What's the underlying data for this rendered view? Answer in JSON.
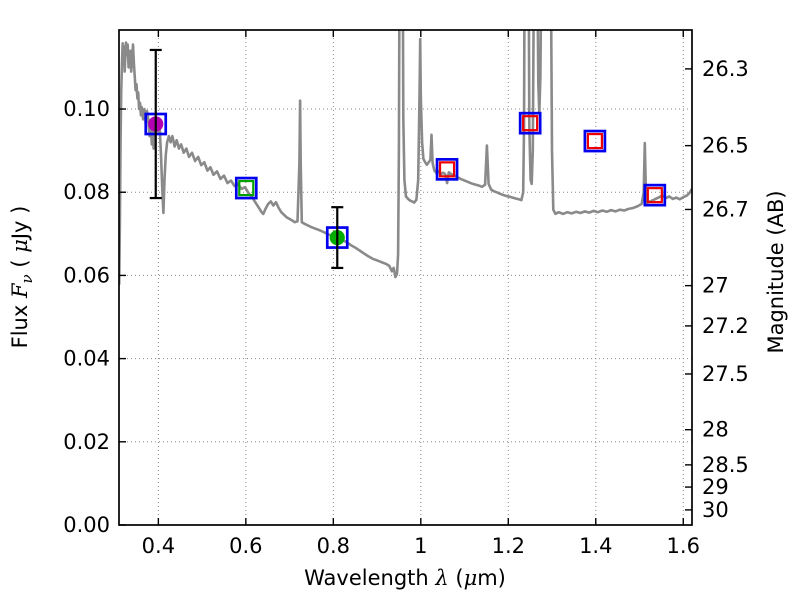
{
  "chart_data": {
    "type": "line+scatter",
    "title": "",
    "xlabel": "Wavelength λ (μm)",
    "ylabel_left": "Flux Fν ( μJy )",
    "ylabel_right": "Magnitude (AB)",
    "xlabel_parts": [
      {
        "t": "Wavelength  "
      },
      {
        "t": "λ",
        "i": true
      },
      {
        "t": " (",
        "i": false
      },
      {
        "t": "μ",
        "i": true
      },
      {
        "t": "m)"
      }
    ],
    "ylabel_left_parts": [
      {
        "t": "Flux  "
      },
      {
        "t": "F",
        "i": true
      },
      {
        "t": "ν",
        "i": true,
        "sub": true
      },
      {
        "t": "  ( "
      },
      {
        "t": "μ",
        "i": true
      },
      {
        "t": "Jy )"
      }
    ],
    "ylabel_right_parts": [
      {
        "t": "Magnitude (AB)"
      }
    ],
    "xlim": [
      0.31,
      1.62
    ],
    "ylim_flux": [
      0,
      0.119
    ],
    "grid": true,
    "ab_zero_point": 23.9,
    "x_ticks": [
      {
        "value": 0.4,
        "label": "0.4"
      },
      {
        "value": 0.6,
        "label": "0.6"
      },
      {
        "value": 0.8,
        "label": "0.8"
      },
      {
        "value": 1.0,
        "label": "1"
      },
      {
        "value": 1.2,
        "label": "1.2"
      },
      {
        "value": 1.4,
        "label": "1.4"
      },
      {
        "value": 1.6,
        "label": "1.6"
      }
    ],
    "y_ticks_flux": [
      {
        "value": 0.0,
        "label": "0.00"
      },
      {
        "value": 0.02,
        "label": "0.02"
      },
      {
        "value": 0.04,
        "label": "0.04"
      },
      {
        "value": 0.06,
        "label": "0.06"
      },
      {
        "value": 0.08,
        "label": "0.08"
      },
      {
        "value": 0.1,
        "label": "0.10"
      }
    ],
    "y_ticks_mag": [
      {
        "value": 26.3,
        "label": "26.3"
      },
      {
        "value": 26.5,
        "label": "26.5"
      },
      {
        "value": 26.7,
        "label": "26.7"
      },
      {
        "value": 27.0,
        "label": "27"
      },
      {
        "value": 27.2,
        "label": "27.2"
      },
      {
        "value": 27.5,
        "label": "27.5"
      },
      {
        "value": 28.0,
        "label": "28"
      },
      {
        "value": 28.5,
        "label": "28.5"
      },
      {
        "value": 29.0,
        "label": "29"
      },
      {
        "value": 30.0,
        "label": "30"
      }
    ],
    "colors": {
      "spectrum": "#8a8a8a",
      "outer_square": "#0000ee",
      "magenta_circle": "#b300b3",
      "green_circle": "#00ad00",
      "green_square": "#00a000",
      "red_square": "#ee0000",
      "errorbar": "#000000",
      "grid": "#888888",
      "frame": "#000000"
    },
    "photometry": [
      {
        "wavelength_um": 0.394,
        "flux_ujy": 0.0964,
        "err_flux": 0.0178,
        "outer_marker": "open-square",
        "inner_marker": "filled-circle",
        "inner_color_key": "magenta_circle"
      },
      {
        "wavelength_um": 0.601,
        "flux_ujy": 0.081,
        "err_flux": null,
        "outer_marker": "open-square",
        "inner_marker": "open-square",
        "inner_color_key": "green_square"
      },
      {
        "wavelength_um": 0.809,
        "flux_ujy": 0.0691,
        "err_flux": 0.0073,
        "outer_marker": "open-square",
        "inner_marker": "filled-circle",
        "inner_color_key": "green_circle"
      },
      {
        "wavelength_um": 1.06,
        "flux_ujy": 0.0855,
        "err_flux": null,
        "outer_marker": "open-square",
        "inner_marker": "open-square",
        "inner_color_key": "red_square"
      },
      {
        "wavelength_um": 1.25,
        "flux_ujy": 0.0966,
        "err_flux": null,
        "outer_marker": "open-square",
        "inner_marker": "open-square",
        "inner_color_key": "red_square"
      },
      {
        "wavelength_um": 1.398,
        "flux_ujy": 0.0923,
        "err_flux": null,
        "outer_marker": "open-square",
        "inner_marker": "open-square",
        "inner_color_key": "red_square"
      },
      {
        "wavelength_um": 1.535,
        "flux_ujy": 0.0793,
        "err_flux": null,
        "outer_marker": "open-square",
        "inner_marker": "open-square",
        "inner_color_key": "red_square"
      }
    ],
    "spectrum": {
      "name": "model-spectrum",
      "points": [
        [
          0.3105,
          0.058
        ],
        [
          0.312,
          0.073
        ],
        [
          0.3135,
          0.091
        ],
        [
          0.315,
          0.104
        ],
        [
          0.317,
          0.112
        ],
        [
          0.3185,
          0.1158
        ],
        [
          0.32,
          0.1125
        ],
        [
          0.3215,
          0.115
        ],
        [
          0.323,
          0.109
        ],
        [
          0.3245,
          0.1125
        ],
        [
          0.326,
          0.116
        ],
        [
          0.328,
          0.113
        ],
        [
          0.33,
          0.1155
        ],
        [
          0.332,
          0.11
        ],
        [
          0.334,
          0.1115
        ],
        [
          0.336,
          0.114
        ],
        [
          0.338,
          0.109
        ],
        [
          0.34,
          0.112
        ],
        [
          0.342,
          0.1155
        ],
        [
          0.344,
          0.111
        ],
        [
          0.346,
          0.108
        ],
        [
          0.348,
          0.1045
        ],
        [
          0.35,
          0.106
        ],
        [
          0.352,
          0.1025
        ],
        [
          0.354,
          0.104
        ],
        [
          0.356,
          0.1
        ],
        [
          0.358,
          0.1015
        ],
        [
          0.36,
          0.0985
        ],
        [
          0.362,
          0.1005
        ],
        [
          0.365,
          0.0975
        ],
        [
          0.368,
          0.1
        ],
        [
          0.371,
          0.0965
        ],
        [
          0.374,
          0.0995
        ],
        [
          0.377,
          0.0975
        ],
        [
          0.38,
          0.0935
        ],
        [
          0.3825,
          0.0965
        ],
        [
          0.385,
          0.0915
        ],
        [
          0.3875,
          0.0945
        ],
        [
          0.389,
          0.0905
        ],
        [
          0.391,
          0.0975
        ],
        [
          0.394,
          0.0955
        ],
        [
          0.397,
          0.0965
        ],
        [
          0.4,
          0.0945
        ],
        [
          0.403,
          0.0955
        ],
        [
          0.406,
          0.089
        ],
        [
          0.409,
          0.0805
        ],
        [
          0.4115,
          0.075
        ],
        [
          0.414,
          0.083
        ],
        [
          0.417,
          0.089
        ],
        [
          0.42,
          0.092
        ],
        [
          0.424,
          0.0935
        ],
        [
          0.428,
          0.092
        ],
        [
          0.432,
          0.0935
        ],
        [
          0.437,
          0.091
        ],
        [
          0.442,
          0.0925
        ],
        [
          0.447,
          0.0905
        ],
        [
          0.452,
          0.0915
        ],
        [
          0.458,
          0.0895
        ],
        [
          0.464,
          0.0905
        ],
        [
          0.47,
          0.0885
        ],
        [
          0.477,
          0.0895
        ],
        [
          0.484,
          0.0875
        ],
        [
          0.491,
          0.0885
        ],
        [
          0.498,
          0.0865
        ],
        [
          0.505,
          0.0872
        ],
        [
          0.512,
          0.0852
        ],
        [
          0.519,
          0.086
        ],
        [
          0.526,
          0.0842
        ],
        [
          0.534,
          0.085
        ],
        [
          0.542,
          0.0832
        ],
        [
          0.55,
          0.084
        ],
        [
          0.558,
          0.0822
        ],
        [
          0.566,
          0.0828
        ],
        [
          0.574,
          0.0815
        ],
        [
          0.582,
          0.082
        ],
        [
          0.59,
          0.0808
        ],
        [
          0.598,
          0.0812
        ],
        [
          0.606,
          0.0798
        ],
        [
          0.614,
          0.0788
        ],
        [
          0.622,
          0.0775
        ],
        [
          0.63,
          0.0762
        ],
        [
          0.636,
          0.0752
        ],
        [
          0.64,
          0.0748
        ],
        [
          0.645,
          0.076
        ],
        [
          0.651,
          0.0772
        ],
        [
          0.657,
          0.0778
        ],
        [
          0.663,
          0.0768
        ],
        [
          0.669,
          0.0776
        ],
        [
          0.675,
          0.0762
        ],
        [
          0.681,
          0.0752
        ],
        [
          0.687,
          0.0746
        ],
        [
          0.693,
          0.074
        ],
        [
          0.699,
          0.0736
        ],
        [
          0.706,
          0.0732
        ],
        [
          0.712,
          0.0728
        ],
        [
          0.718,
          0.073
        ],
        [
          0.7225,
          0.087
        ],
        [
          0.724,
          0.102
        ],
        [
          0.7255,
          0.087
        ],
        [
          0.728,
          0.0728
        ],
        [
          0.734,
          0.0724
        ],
        [
          0.742,
          0.072
        ],
        [
          0.75,
          0.0716
        ],
        [
          0.76,
          0.0712
        ],
        [
          0.77,
          0.0708
        ],
        [
          0.78,
          0.0703
        ],
        [
          0.79,
          0.0698
        ],
        [
          0.8,
          0.0694
        ],
        [
          0.81,
          0.069
        ],
        [
          0.82,
          0.0685
        ],
        [
          0.83,
          0.068
        ],
        [
          0.84,
          0.0673
        ],
        [
          0.85,
          0.0667
        ],
        [
          0.86,
          0.066
        ],
        [
          0.87,
          0.0653
        ],
        [
          0.88,
          0.0646
        ],
        [
          0.89,
          0.064
        ],
        [
          0.9,
          0.0636
        ],
        [
          0.91,
          0.0632
        ],
        [
          0.92,
          0.0628
        ],
        [
          0.928,
          0.0623
        ],
        [
          0.934,
          0.061
        ],
        [
          0.938,
          0.0618
        ],
        [
          0.942,
          0.0596
        ],
        [
          0.9455,
          0.0604
        ],
        [
          0.948,
          0.065
        ],
        [
          0.95,
          0.09
        ],
        [
          0.9515,
          0.14
        ],
        [
          0.9585,
          0.14
        ],
        [
          0.96,
          0.098
        ],
        [
          0.9625,
          0.083
        ],
        [
          0.966,
          0.079
        ],
        [
          0.97,
          0.0785
        ],
        [
          0.975,
          0.078
        ],
        [
          0.98,
          0.0778
        ],
        [
          0.985,
          0.0775
        ],
        [
          0.99,
          0.0782
        ],
        [
          0.994,
          0.083
        ],
        [
          0.997,
          0.103
        ],
        [
          0.9985,
          0.1168
        ],
        [
          1.0,
          0.103
        ],
        [
          1.003,
          0.092
        ],
        [
          1.006,
          0.088
        ],
        [
          1.01,
          0.0872
        ],
        [
          1.014,
          0.0866
        ],
        [
          1.018,
          0.0872
        ],
        [
          1.022,
          0.0878
        ],
        [
          1.0245,
          0.0938
        ],
        [
          1.027,
          0.087
        ],
        [
          1.031,
          0.0852
        ],
        [
          1.036,
          0.0846
        ],
        [
          1.041,
          0.085
        ],
        [
          1.046,
          0.0843
        ],
        [
          1.051,
          0.0847
        ],
        [
          1.056,
          0.0843
        ],
        [
          1.06,
          0.0822
        ],
        [
          1.064,
          0.0848
        ],
        [
          1.07,
          0.0843
        ],
        [
          1.077,
          0.084
        ],
        [
          1.084,
          0.0836
        ],
        [
          1.091,
          0.0832
        ],
        [
          1.098,
          0.0829
        ],
        [
          1.105,
          0.0826
        ],
        [
          1.112,
          0.0823
        ],
        [
          1.119,
          0.082
        ],
        [
          1.126,
          0.0818
        ],
        [
          1.133,
          0.0816
        ],
        [
          1.14,
          0.0813
        ],
        [
          1.147,
          0.0818
        ],
        [
          1.151,
          0.0912
        ],
        [
          1.155,
          0.082
        ],
        [
          1.161,
          0.0806
        ],
        [
          1.168,
          0.0802
        ],
        [
          1.175,
          0.0799
        ],
        [
          1.182,
          0.0796
        ],
        [
          1.189,
          0.0793
        ],
        [
          1.196,
          0.0791
        ],
        [
          1.203,
          0.0789
        ],
        [
          1.21,
          0.0787
        ],
        [
          1.217,
          0.0785
        ],
        [
          1.224,
          0.0783
        ],
        [
          1.23,
          0.0781
        ],
        [
          1.234,
          0.08
        ],
        [
          1.236,
          0.095
        ],
        [
          1.2375,
          0.14
        ],
        [
          1.2465,
          0.14
        ],
        [
          1.248,
          0.096
        ],
        [
          1.251,
          0.083
        ],
        [
          1.2535,
          0.082
        ],
        [
          1.256,
          0.09
        ],
        [
          1.259,
          0.14
        ],
        [
          1.266,
          0.14
        ],
        [
          1.2685,
          0.106
        ],
        [
          1.271,
          0.099
        ],
        [
          1.2735,
          0.108
        ],
        [
          1.276,
          0.14
        ],
        [
          1.297,
          0.14
        ],
        [
          1.3,
          0.09
        ],
        [
          1.303,
          0.0758
        ],
        [
          1.308,
          0.0748
        ],
        [
          1.315,
          0.0752
        ],
        [
          1.325,
          0.0748
        ],
        [
          1.335,
          0.0752
        ],
        [
          1.345,
          0.0749
        ],
        [
          1.355,
          0.0753
        ],
        [
          1.365,
          0.075
        ],
        [
          1.375,
          0.0754
        ],
        [
          1.385,
          0.0751
        ],
        [
          1.395,
          0.0755
        ],
        [
          1.405,
          0.0752
        ],
        [
          1.415,
          0.0756
        ],
        [
          1.425,
          0.0753
        ],
        [
          1.435,
          0.0757
        ],
        [
          1.445,
          0.0754
        ],
        [
          1.455,
          0.0758
        ],
        [
          1.465,
          0.0756
        ],
        [
          1.475,
          0.076
        ],
        [
          1.485,
          0.0762
        ],
        [
          1.495,
          0.0766
        ],
        [
          1.505,
          0.0772
        ],
        [
          1.5095,
          0.08
        ],
        [
          1.512,
          0.0918
        ],
        [
          1.5145,
          0.08
        ],
        [
          1.517,
          0.0775
        ],
        [
          1.525,
          0.0778
        ],
        [
          1.535,
          0.0783
        ],
        [
          1.545,
          0.0788
        ],
        [
          1.552,
          0.0792
        ],
        [
          1.56,
          0.0786
        ],
        [
          1.568,
          0.079
        ],
        [
          1.576,
          0.0784
        ],
        [
          1.584,
          0.0787
        ],
        [
          1.592,
          0.0783
        ],
        [
          1.6,
          0.0788
        ],
        [
          1.608,
          0.0792
        ],
        [
          1.614,
          0.0798
        ],
        [
          1.62,
          0.0808
        ]
      ]
    }
  }
}
